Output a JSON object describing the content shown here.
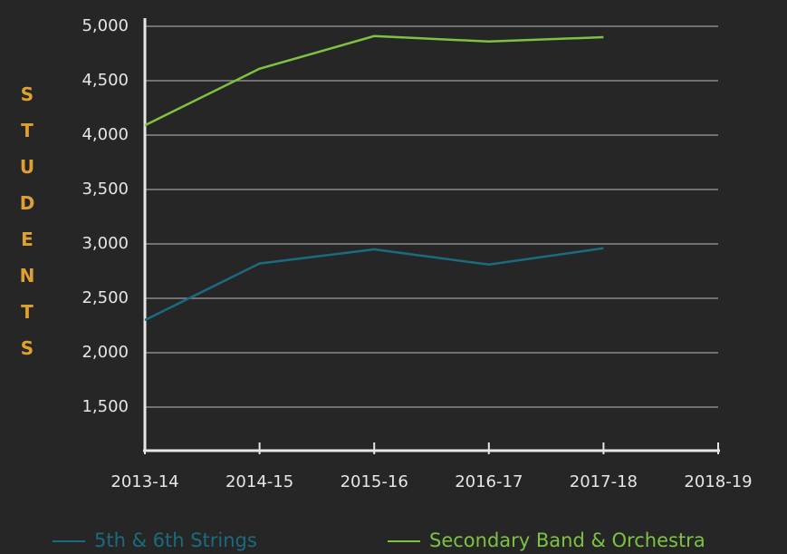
{
  "chart_data": {
    "type": "line",
    "y_label": "STUDENTS",
    "categories": [
      "2013-14",
      "2014-15",
      "2015-16",
      "2016-17",
      "2017-18",
      "2018-19"
    ],
    "series": [
      {
        "name": "5th & 6th Strings",
        "color": "#1a6b80",
        "values": [
          2300,
          2820,
          2950,
          2810,
          2960,
          null
        ]
      },
      {
        "name": "Secondary Band & Orchestra",
        "color": "#7dc242",
        "values": [
          4090,
          4610,
          4910,
          4860,
          4900,
          null
        ]
      }
    ],
    "ylim": [
      1100,
      5000
    ],
    "yticks": [
      {
        "value": 1500,
        "label": "1,500"
      },
      {
        "value": 2000,
        "label": "2,000"
      },
      {
        "value": 2500,
        "label": "2,500"
      },
      {
        "value": 3000,
        "label": "3,000"
      },
      {
        "value": 3500,
        "label": "3,500"
      },
      {
        "value": 4000,
        "label": "4,000"
      },
      {
        "value": 4500,
        "label": "4,500"
      },
      {
        "value": 5000,
        "label": "5,000"
      }
    ],
    "grid": true
  }
}
